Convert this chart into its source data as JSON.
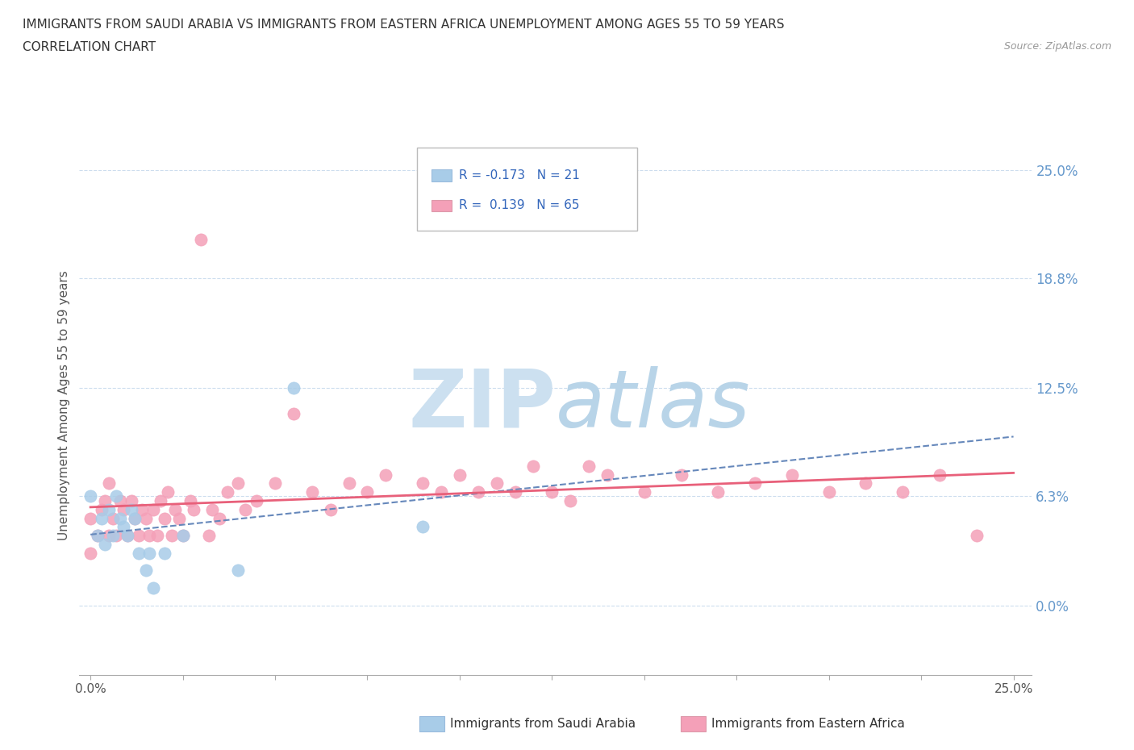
{
  "title_line1": "IMMIGRANTS FROM SAUDI ARABIA VS IMMIGRANTS FROM EASTERN AFRICA UNEMPLOYMENT AMONG AGES 55 TO 59 YEARS",
  "title_line2": "CORRELATION CHART",
  "source_text": "Source: ZipAtlas.com",
  "ylabel": "Unemployment Among Ages 55 to 59 years",
  "xlim": [
    0.0,
    0.25
  ],
  "ylim": [
    -0.04,
    0.27
  ],
  "ytick_values": [
    0.0,
    0.063,
    0.125,
    0.188,
    0.25
  ],
  "ytick_labels": [
    "0.0%",
    "6.3%",
    "12.5%",
    "18.8%",
    "25.0%"
  ],
  "xtick_values": [
    0.0,
    0.025,
    0.05,
    0.075,
    0.1,
    0.125,
    0.15,
    0.175,
    0.2,
    0.225,
    0.25
  ],
  "xtick_labels": [
    "0.0%",
    "",
    "",
    "",
    "",
    "",
    "",
    "",
    "",
    "",
    "25.0%"
  ],
  "saudi_R": -0.173,
  "saudi_N": 21,
  "eastern_R": 0.139,
  "eastern_N": 65,
  "saudi_color": "#a8cce8",
  "eastern_color": "#f4a0b8",
  "saudi_line_color": "#6688bb",
  "eastern_line_color": "#e8607a",
  "right_label_color": "#6699cc",
  "grid_color": "#ccddee",
  "watermark_zip_color": "#cce0f0",
  "watermark_atlas_color": "#b8d4e8",
  "saudi_scatter_x": [
    0.0,
    0.002,
    0.003,
    0.004,
    0.005,
    0.006,
    0.007,
    0.008,
    0.009,
    0.01,
    0.011,
    0.012,
    0.013,
    0.015,
    0.016,
    0.017,
    0.02,
    0.025,
    0.04,
    0.055,
    0.09
  ],
  "saudi_scatter_y": [
    0.063,
    0.04,
    0.05,
    0.035,
    0.055,
    0.04,
    0.063,
    0.05,
    0.045,
    0.04,
    0.055,
    0.05,
    0.03,
    0.02,
    0.03,
    0.01,
    0.03,
    0.04,
    0.02,
    0.125,
    0.045
  ],
  "eastern_scatter_x": [
    0.0,
    0.0,
    0.002,
    0.003,
    0.004,
    0.005,
    0.005,
    0.006,
    0.007,
    0.008,
    0.009,
    0.01,
    0.011,
    0.012,
    0.013,
    0.014,
    0.015,
    0.016,
    0.017,
    0.018,
    0.019,
    0.02,
    0.021,
    0.022,
    0.023,
    0.024,
    0.025,
    0.027,
    0.028,
    0.03,
    0.032,
    0.033,
    0.035,
    0.037,
    0.04,
    0.042,
    0.045,
    0.05,
    0.055,
    0.06,
    0.065,
    0.07,
    0.075,
    0.08,
    0.09,
    0.095,
    0.1,
    0.105,
    0.11,
    0.115,
    0.12,
    0.125,
    0.13,
    0.135,
    0.14,
    0.15,
    0.16,
    0.17,
    0.18,
    0.19,
    0.2,
    0.21,
    0.22,
    0.23,
    0.24
  ],
  "eastern_scatter_y": [
    0.05,
    0.03,
    0.04,
    0.055,
    0.06,
    0.04,
    0.07,
    0.05,
    0.04,
    0.06,
    0.055,
    0.04,
    0.06,
    0.05,
    0.04,
    0.055,
    0.05,
    0.04,
    0.055,
    0.04,
    0.06,
    0.05,
    0.065,
    0.04,
    0.055,
    0.05,
    0.04,
    0.06,
    0.055,
    0.21,
    0.04,
    0.055,
    0.05,
    0.065,
    0.07,
    0.055,
    0.06,
    0.07,
    0.11,
    0.065,
    0.055,
    0.07,
    0.065,
    0.075,
    0.07,
    0.065,
    0.075,
    0.065,
    0.07,
    0.065,
    0.08,
    0.065,
    0.06,
    0.08,
    0.075,
    0.065,
    0.075,
    0.065,
    0.07,
    0.075,
    0.065,
    0.07,
    0.065,
    0.075,
    0.04
  ]
}
